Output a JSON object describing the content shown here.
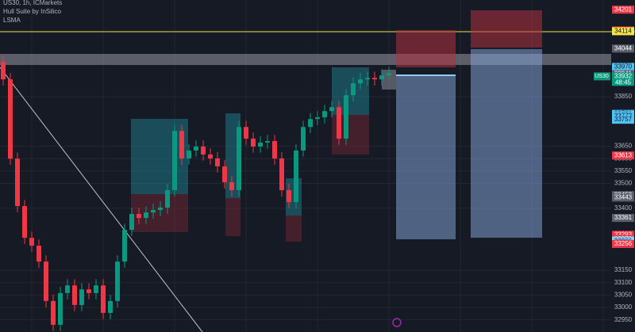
{
  "chart_data": {
    "type": "candlestick",
    "header": [
      "US30, 1h, ICMarkets",
      "Hull Suite by InSilico",
      "LSMA"
    ],
    "symbol": "US30",
    "up_color": "#089981",
    "down_color": "#f23645",
    "ylim": [
      32901,
      34240
    ],
    "yticks": [
      32950,
      33000,
      33050,
      33100,
      33150,
      33400,
      33500,
      33550,
      33600,
      33650,
      33850
    ],
    "open": [
      33990,
      33920,
      33600,
      33409,
      33281,
      33249,
      33185,
      33026,
      32930,
      33058,
      33089,
      33010,
      33073,
      33058,
      33089,
      32978,
      33026,
      33185,
      33313,
      33377,
      33361,
      33383,
      33393,
      33403,
      33473,
      33712,
      33601,
      33633,
      33649,
      33617,
      33601,
      33569,
      33505,
      33473,
      33728,
      33681,
      33649,
      33665,
      33671,
      33601,
      33473,
      33425,
      33633,
      33728,
      33760,
      33767,
      33792,
      33808,
      33681,
      33856,
      33904,
      33920,
      33926,
      33920,
      33936
    ],
    "high": [
      34015,
      33945,
      33625,
      33434,
      33306,
      33274,
      33210,
      33051,
      33083,
      33114,
      33114,
      33098,
      33098,
      33114,
      33114,
      33051,
      33210,
      33338,
      33402,
      33402,
      33408,
      33418,
      33428,
      33498,
      33737,
      33737,
      33658,
      33674,
      33674,
      33642,
      33626,
      33594,
      33530,
      33753,
      33753,
      33706,
      33690,
      33696,
      33696,
      33626,
      33498,
      33658,
      33753,
      33785,
      33792,
      33817,
      33833,
      33833,
      33881,
      33929,
      33945,
      33951,
      33951,
      33961,
      33970
    ],
    "low": [
      33895,
      33575,
      33384,
      33256,
      33224,
      33160,
      33001,
      32905,
      32905,
      33033,
      32985,
      32985,
      33033,
      33033,
      32953,
      32953,
      33001,
      33160,
      33288,
      33336,
      33336,
      33358,
      33368,
      33378,
      33448,
      33576,
      33576,
      33608,
      33592,
      33576,
      33544,
      33480,
      33448,
      33448,
      33656,
      33624,
      33624,
      33640,
      33576,
      33448,
      33400,
      33400,
      33608,
      33703,
      33735,
      33742,
      33767,
      33656,
      33656,
      33831,
      33879,
      33895,
      33895,
      33895,
      33911
    ],
    "close": [
      33920,
      33600,
      33409,
      33281,
      33249,
      33185,
      33026,
      32930,
      33058,
      33089,
      33010,
      33073,
      33058,
      33089,
      32978,
      33026,
      33185,
      33313,
      33377,
      33361,
      33383,
      33393,
      33403,
      33473,
      33712,
      33601,
      33633,
      33649,
      33617,
      33601,
      33569,
      33505,
      33473,
      33728,
      33681,
      33649,
      33665,
      33671,
      33601,
      33473,
      33425,
      33633,
      33728,
      33760,
      33767,
      33792,
      33808,
      33681,
      33856,
      33904,
      33920,
      33926,
      33920,
      33936,
      33945
    ],
    "price_badges": [
      {
        "value": 34201,
        "color": "#f23645"
      },
      {
        "value": 34117,
        "color": "#f23645"
      },
      {
        "value": 34114,
        "color": "#f7e34a"
      },
      {
        "value": 34044,
        "color": "#5d606b"
      },
      {
        "value": 33970,
        "color": "#4fc3f7"
      },
      {
        "value": 33941,
        "color": "#5d606b"
      },
      {
        "value": 33932,
        "color": "#089981"
      },
      {
        "value": 33781,
        "color": "#4fc3f7"
      },
      {
        "value": 33775,
        "color": "#4fc3f7"
      },
      {
        "value": 33772,
        "color": "#4fc3f7"
      },
      {
        "value": 33757,
        "color": "#4fc3f7"
      },
      {
        "value": 33613,
        "color": "#f23645"
      },
      {
        "value": 33453,
        "color": "#5d606b"
      },
      {
        "value": 33443,
        "color": "#5d606b"
      },
      {
        "value": 33361,
        "color": "#5d606b"
      },
      {
        "value": 33293,
        "color": "#f23645"
      },
      {
        "value": 33276,
        "color": "#f23645"
      },
      {
        "value": 33270,
        "color": "#90caf9"
      },
      {
        "value": 33266,
        "color": "#90caf9"
      },
      {
        "value": 33256,
        "color": "#f23645"
      }
    ],
    "countdown": "48:45"
  }
}
